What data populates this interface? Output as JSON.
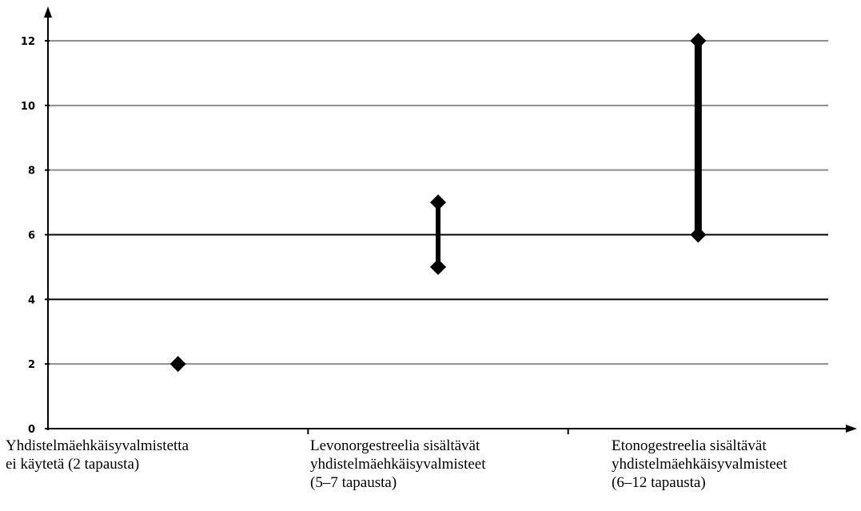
{
  "chart_data": {
    "type": "range",
    "ylim": [
      0,
      12
    ],
    "yticks": [
      0,
      2,
      4,
      6,
      8,
      10,
      12
    ],
    "grid": true,
    "categories": [
      {
        "lines": [
          "Yhdistelmäehkäisyvalmistetta",
          "ei käytetä (2 tapausta)"
        ],
        "low": 2,
        "high": 2
      },
      {
        "lines": [
          "Levonorgestreelia sisältävät",
          "yhdistelmäehkäisyvalmisteet",
          "(5–7 tapausta)"
        ],
        "low": 5,
        "high": 7
      },
      {
        "lines": [
          "Etonogestreelia sisältävät",
          "yhdistelmäehkäisyvalmisteet",
          "(6–12 tapausta)"
        ],
        "low": 6,
        "high": 12
      }
    ],
    "colors": {
      "marker": "#000000",
      "grid_dark": "#000000",
      "grid_light": "#8c8c8c",
      "axis": "#000000"
    }
  }
}
